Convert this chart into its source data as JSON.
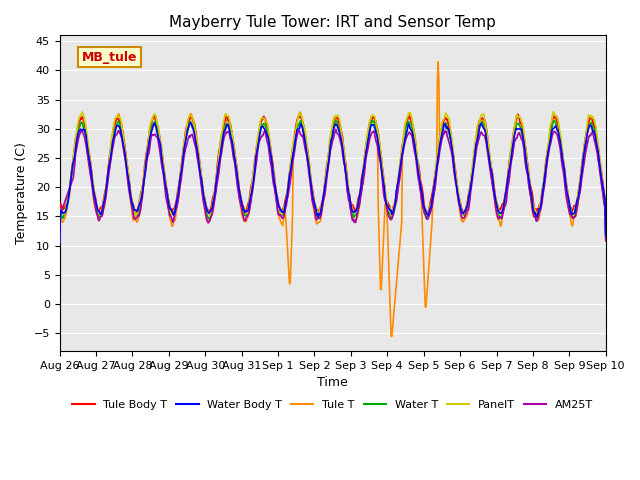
{
  "title": "Mayberry Tule Tower: IRT and Sensor Temp",
  "xlabel": "Time",
  "ylabel": "Temperature (C)",
  "ylim": [
    -8,
    46
  ],
  "yticks": [
    -5,
    0,
    5,
    10,
    15,
    20,
    25,
    30,
    35,
    40,
    45
  ],
  "xtick_labels": [
    "Aug 26",
    "Aug 27",
    "Aug 28",
    "Aug 29",
    "Aug 30",
    "Aug 31",
    "Sep 1",
    "Sep 2",
    "Sep 3",
    "Sep 4",
    "Sep 5",
    "Sep 6",
    "Sep 7",
    "Sep 8",
    "Sep 9",
    "Sep 10"
  ],
  "legend_entries": [
    "Tule Body T",
    "Water Body T",
    "Tule T",
    "Water T",
    "PanelT",
    "AM25T"
  ],
  "legend_colors": [
    "#ff0000",
    "#0000ff",
    "#ff8c00",
    "#00aa00",
    "#cccc00",
    "#aa00aa"
  ],
  "line_widths": [
    1.5,
    1.5,
    1.5,
    1.5,
    1.5,
    1.5
  ],
  "annotation_text": "MB_tule",
  "annotation_color": "#cc0000",
  "annotation_bg": "#ffffcc",
  "annotation_border": "#cc8800",
  "bg_color": "#e8e8e8",
  "plot_bg": "#e8e8e8"
}
